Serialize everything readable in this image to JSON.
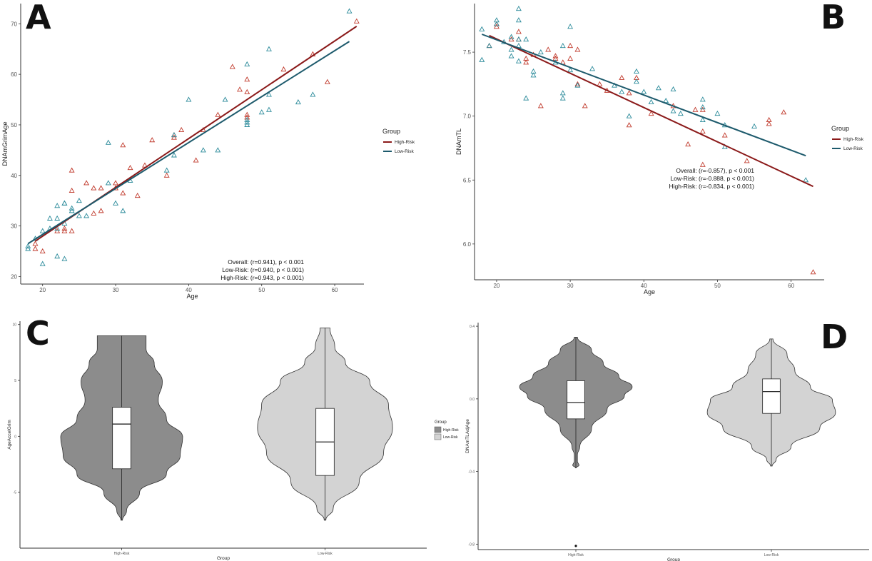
{
  "colors": {
    "high_risk_line": "#8b1a1a",
    "low_risk_line": "#1d5a6c",
    "high_risk_point": "#c0392b",
    "low_risk_point": "#2a8a9a",
    "violin_high": "#8c8c8c",
    "violin_low": "#d3d3d3"
  },
  "chart_data": [
    {
      "id": "A",
      "panel_label": "A",
      "type": "scatter",
      "xlabel": "Age",
      "ylabel": "DNAmGrimAge",
      "xlim": [
        17,
        64
      ],
      "ylim": [
        18.5,
        74
      ],
      "xticks": [
        20,
        30,
        40,
        50,
        60
      ],
      "yticks": [
        20,
        30,
        40,
        50,
        60,
        70
      ],
      "legend": {
        "title": "Group",
        "entries": [
          "High-Risk",
          "Low-Risk"
        ],
        "position": "right"
      },
      "annotations": [
        "Overall: (r=0.941), p < 0.001",
        "Low-Risk: (r=0.940, p < 0.001)",
        "High-Risk: (r=0.943, p < 0.001)"
      ],
      "fit_lines": [
        {
          "name": "High-Risk",
          "x": [
            19,
            63
          ],
          "y": [
            27.0,
            69.5
          ]
        },
        {
          "name": "Low-Risk",
          "x": [
            18,
            62
          ],
          "y": [
            26.5,
            66.5
          ]
        }
      ],
      "series": [
        {
          "name": "High-Risk",
          "points": [
            [
              19,
              26.5
            ],
            [
              19,
              25.5
            ],
            [
              20,
              25
            ],
            [
              22,
              29
            ],
            [
              23,
              29.5
            ],
            [
              23,
              29
            ],
            [
              24,
              41
            ],
            [
              24,
              29
            ],
            [
              24,
              37
            ],
            [
              26,
              38.5
            ],
            [
              27,
              37.5
            ],
            [
              27,
              32.5
            ],
            [
              28,
              33
            ],
            [
              28,
              37.5
            ],
            [
              30,
              38.5
            ],
            [
              30,
              37.5
            ],
            [
              31,
              36.5
            ],
            [
              31,
              46
            ],
            [
              32,
              41.5
            ],
            [
              33,
              36
            ],
            [
              34,
              42
            ],
            [
              35,
              47
            ],
            [
              37,
              40
            ],
            [
              38,
              48
            ],
            [
              38,
              47.5
            ],
            [
              39,
              49
            ],
            [
              41,
              43
            ],
            [
              42,
              49
            ],
            [
              44,
              52
            ],
            [
              46,
              61.5
            ],
            [
              47,
              57
            ],
            [
              48,
              56.5
            ],
            [
              48,
              59
            ],
            [
              48,
              51.5
            ],
            [
              48,
              52
            ],
            [
              53,
              61
            ],
            [
              57,
              64
            ],
            [
              59,
              58.5
            ],
            [
              63,
              70.5
            ]
          ]
        },
        {
          "name": "Low-Risk",
          "points": [
            [
              18,
              25.5
            ],
            [
              18,
              26
            ],
            [
              19,
              27.5
            ],
            [
              20,
              22.5
            ],
            [
              20,
              29
            ],
            [
              21,
              31.5
            ],
            [
              21,
              29.5
            ],
            [
              22,
              34
            ],
            [
              22,
              29.5
            ],
            [
              22,
              31.5
            ],
            [
              22,
              24
            ],
            [
              23,
              34.5
            ],
            [
              23,
              34.5
            ],
            [
              23,
              30.5
            ],
            [
              23,
              23.5
            ],
            [
              24,
              33
            ],
            [
              24,
              33.5
            ],
            [
              25,
              35
            ],
            [
              25,
              32
            ],
            [
              26,
              32
            ],
            [
              29,
              46.5
            ],
            [
              29,
              38.5
            ],
            [
              30,
              34.5
            ],
            [
              31,
              33
            ],
            [
              32,
              39
            ],
            [
              37,
              41
            ],
            [
              38,
              44
            ],
            [
              38,
              48
            ],
            [
              40,
              55
            ],
            [
              42,
              45
            ],
            [
              44,
              45
            ],
            [
              45,
              55
            ],
            [
              48,
              62
            ],
            [
              48,
              51
            ],
            [
              48,
              50.5
            ],
            [
              48,
              50
            ],
            [
              50,
              52.5
            ],
            [
              51,
              65
            ],
            [
              51,
              53
            ],
            [
              51,
              56
            ],
            [
              55,
              54.5
            ],
            [
              57,
              56
            ],
            [
              62,
              72.5
            ]
          ]
        }
      ]
    },
    {
      "id": "B",
      "panel_label": "B",
      "type": "scatter",
      "xlabel": "Age",
      "ylabel": "DNAmTL",
      "xlim": [
        17,
        64.5
      ],
      "ylim": [
        5.72,
        7.88
      ],
      "xticks": [
        20,
        30,
        40,
        50,
        60
      ],
      "yticks": [
        6.0,
        6.5,
        7.0,
        7.5
      ],
      "ytick_labels": [
        "6.0",
        "6.5",
        "7.0",
        "7.5"
      ],
      "legend": {
        "title": "Group",
        "entries": [
          "High-Risk",
          "Low-Risk"
        ],
        "position": "right"
      },
      "annotations": [
        "Overall: (r=-0.857), p < 0.001",
        "Low-Risk: (r=-0.888, p < 0.001)",
        "High-Risk: (r=-0.834, p < 0.001)"
      ],
      "fit_lines": [
        {
          "name": "High-Risk",
          "x": [
            19,
            63
          ],
          "y": [
            7.63,
            6.45
          ]
        },
        {
          "name": "Low-Risk",
          "x": [
            18,
            62
          ],
          "y": [
            7.64,
            6.69
          ]
        }
      ],
      "series": [
        {
          "name": "High-Risk",
          "points": [
            [
              19,
              7.55
            ],
            [
              20,
              7.72
            ],
            [
              20,
              7.7
            ],
            [
              22,
              7.6
            ],
            [
              23,
              7.6
            ],
            [
              23,
              7.66
            ],
            [
              24,
              7.45
            ],
            [
              24,
              7.42
            ],
            [
              25,
              7.48
            ],
            [
              26,
              7.08
            ],
            [
              27,
              7.52
            ],
            [
              28,
              7.47
            ],
            [
              28,
              7.45
            ],
            [
              29,
              7.42
            ],
            [
              30,
              7.55
            ],
            [
              30,
              7.45
            ],
            [
              31,
              7.25
            ],
            [
              31,
              7.52
            ],
            [
              32,
              7.08
            ],
            [
              34,
              7.25
            ],
            [
              35,
              7.2
            ],
            [
              37,
              7.3
            ],
            [
              38,
              7.18
            ],
            [
              38,
              6.93
            ],
            [
              39,
              7.3
            ],
            [
              41,
              7.02
            ],
            [
              44,
              7.08
            ],
            [
              46,
              6.78
            ],
            [
              47,
              7.05
            ],
            [
              48,
              6.62
            ],
            [
              48,
              6.88
            ],
            [
              48,
              7.05
            ],
            [
              51,
              6.85
            ],
            [
              54,
              6.65
            ],
            [
              57,
              6.97
            ],
            [
              57,
              6.94
            ],
            [
              59,
              7.03
            ],
            [
              63,
              5.78
            ]
          ]
        },
        {
          "name": "Low-Risk",
          "points": [
            [
              18,
              7.68
            ],
            [
              18,
              7.44
            ],
            [
              19,
              7.55
            ],
            [
              20,
              7.75
            ],
            [
              20,
              7.72
            ],
            [
              21,
              7.58
            ],
            [
              22,
              7.62
            ],
            [
              22,
              7.52
            ],
            [
              22,
              7.47
            ],
            [
              23,
              7.84
            ],
            [
              23,
              7.75
            ],
            [
              23,
              7.6
            ],
            [
              23,
              7.55
            ],
            [
              23,
              7.43
            ],
            [
              24,
              7.6
            ],
            [
              24,
              7.14
            ],
            [
              25,
              7.35
            ],
            [
              25,
              7.32
            ],
            [
              26,
              7.5
            ],
            [
              28,
              7.42
            ],
            [
              29,
              7.55
            ],
            [
              29,
              7.18
            ],
            [
              29,
              7.14
            ],
            [
              30,
              7.7
            ],
            [
              30,
              7.36
            ],
            [
              31,
              7.24
            ],
            [
              33,
              7.37
            ],
            [
              36,
              7.24
            ],
            [
              37,
              7.19
            ],
            [
              38,
              7.0
            ],
            [
              39,
              7.27
            ],
            [
              39,
              7.35
            ],
            [
              40,
              7.19
            ],
            [
              41,
              7.11
            ],
            [
              42,
              7.22
            ],
            [
              43,
              7.12
            ],
            [
              44,
              7.21
            ],
            [
              44,
              7.04
            ],
            [
              45,
              7.02
            ],
            [
              48,
              7.13
            ],
            [
              48,
              7.07
            ],
            [
              48,
              6.97
            ],
            [
              50,
              7.02
            ],
            [
              51,
              6.93
            ],
            [
              51,
              6.76
            ],
            [
              55,
              6.92
            ],
            [
              62,
              6.5
            ]
          ]
        }
      ]
    },
    {
      "id": "C",
      "panel_label": "C",
      "type": "violin",
      "xlabel": "Group",
      "ylabel": "AgeAccelGrim",
      "categories": [
        "High-Risk",
        "Low-Risk"
      ],
      "ylim": [
        -10,
        10.3
      ],
      "yticks": [
        -5,
        0,
        5,
        10
      ],
      "ytick_labels": [
        "-5",
        "0",
        "5",
        "10"
      ],
      "legend": {
        "title": "Group",
        "entries": [
          "High-Risk",
          "Low-Risk"
        ],
        "position": "right"
      },
      "series": [
        {
          "name": "High-Risk",
          "min": -7.5,
          "q1": -2.9,
          "median": 1.1,
          "q3": 2.6,
          "max": 9.0
        },
        {
          "name": "Low-Risk",
          "min": -7.5,
          "q1": -3.5,
          "median": -0.5,
          "q3": 2.5,
          "max": 9.7
        }
      ]
    },
    {
      "id": "D",
      "panel_label": "D",
      "type": "violin",
      "xlabel": "Group",
      "ylabel": "DNAmTLAdjAge",
      "categories": [
        "High-Risk",
        "Low-Risk"
      ],
      "ylim": [
        -0.83,
        0.42
      ],
      "yticks": [
        -0.8,
        -0.4,
        0.0,
        0.4
      ],
      "ytick_labels": [
        "-0.8",
        "-0.4",
        "0.0",
        "0.4"
      ],
      "legend": null,
      "series": [
        {
          "name": "High-Risk",
          "min": -0.38,
          "q1": -0.11,
          "median": -0.02,
          "q3": 0.1,
          "max": 0.34,
          "outliers": [
            -0.81
          ]
        },
        {
          "name": "Low-Risk",
          "min": -0.37,
          "q1": -0.08,
          "median": 0.04,
          "q3": 0.11,
          "max": 0.33
        }
      ]
    }
  ]
}
